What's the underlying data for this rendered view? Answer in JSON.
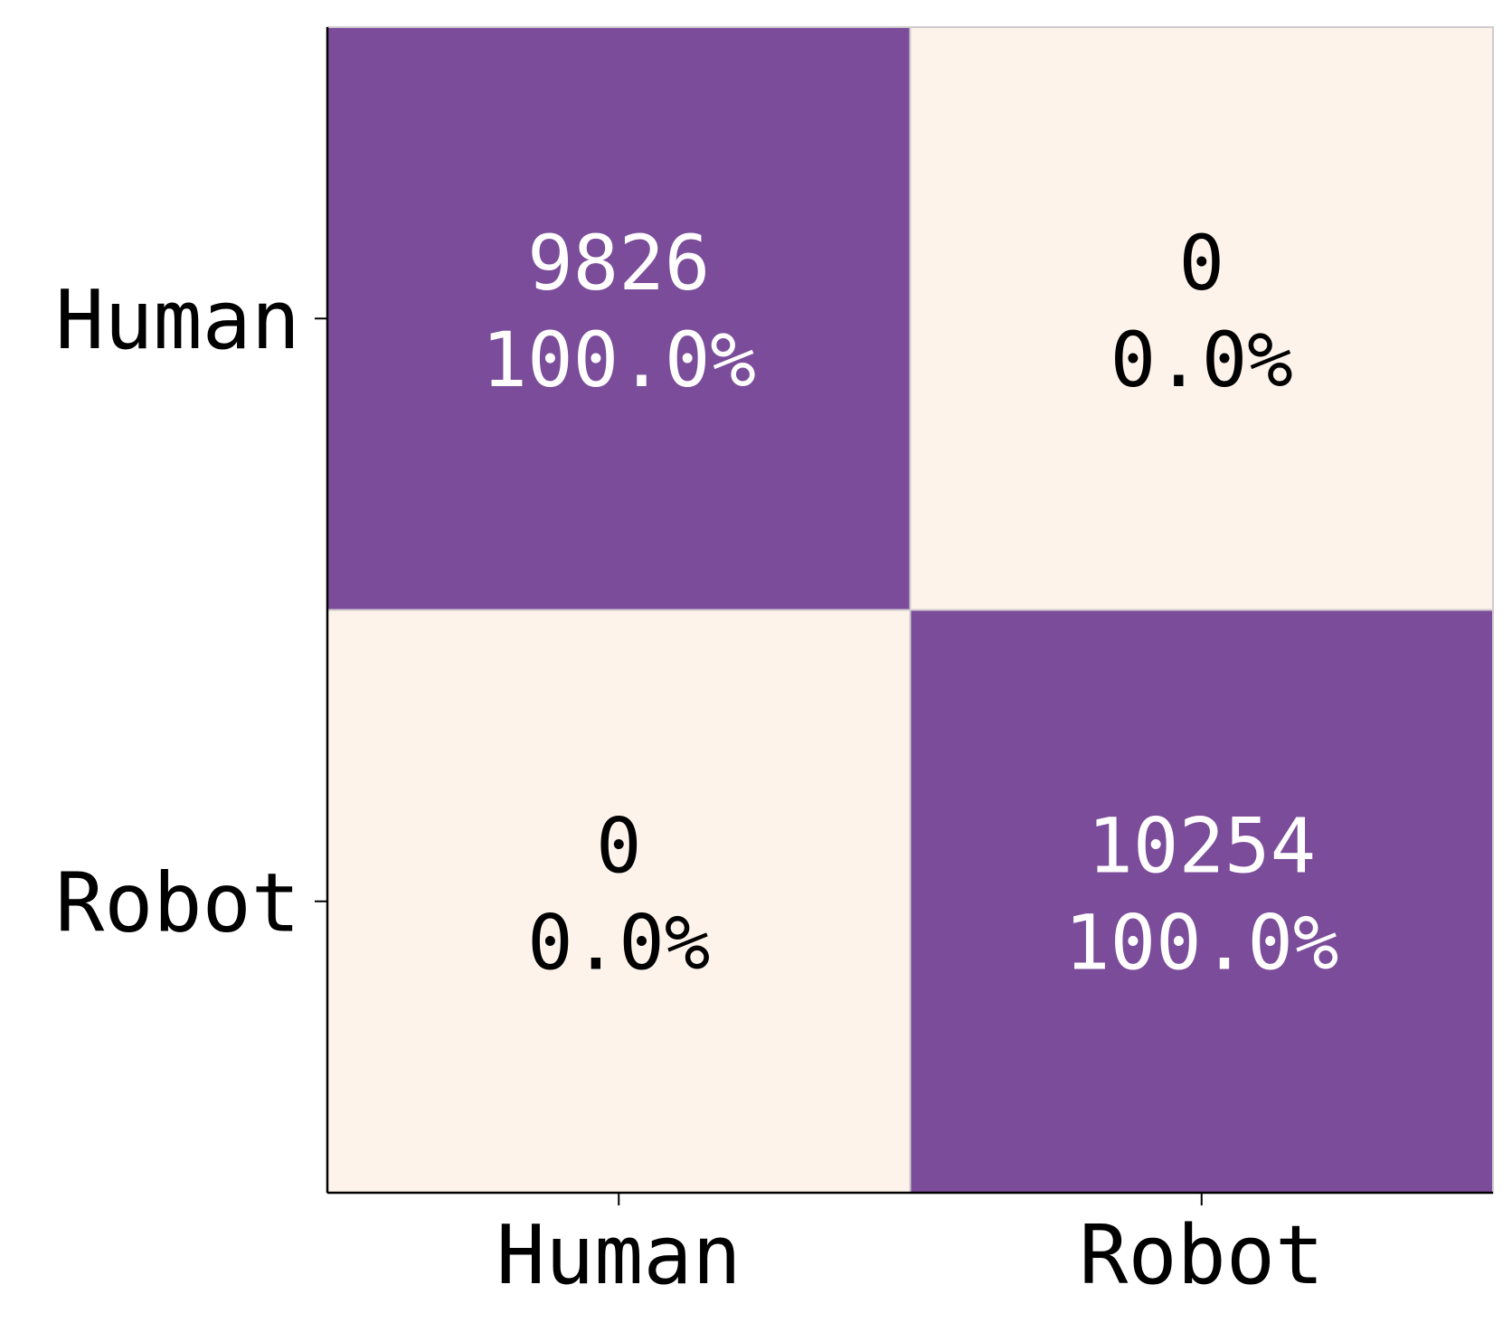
{
  "chart_data": {
    "type": "heatmap",
    "x_categories": [
      "Human",
      "Robot"
    ],
    "y_categories": [
      "Human",
      "Robot"
    ],
    "values": [
      [
        9826,
        0
      ],
      [
        0,
        10254
      ]
    ],
    "percents": [
      [
        100.0,
        0.0
      ],
      [
        0.0,
        100.0
      ]
    ],
    "percent_labels": [
      [
        "100.0%",
        "0.0%"
      ],
      [
        "0.0%",
        "100.0%"
      ]
    ],
    "colors": [
      "#fdf3eb",
      "#7b4c9a"
    ]
  }
}
